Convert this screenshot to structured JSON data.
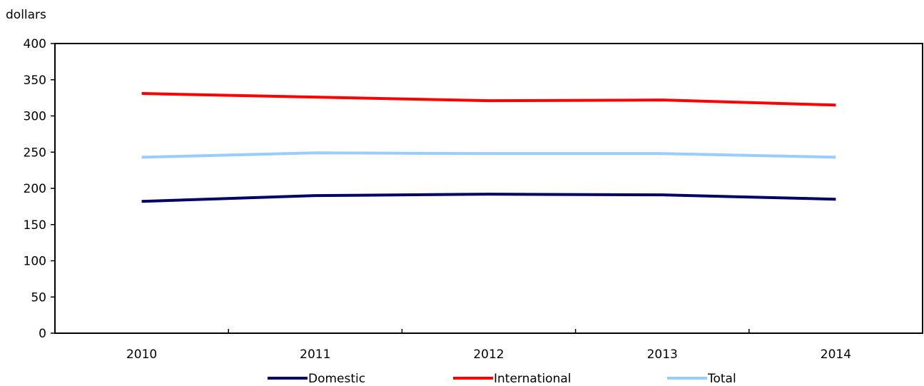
{
  "chart_data": {
    "type": "line",
    "ylabel": "dollars",
    "xlabel": "",
    "title": "",
    "categories": [
      "2010",
      "2011",
      "2012",
      "2013",
      "2014"
    ],
    "ylim": [
      0,
      400
    ],
    "yticks": [
      0,
      50,
      100,
      150,
      200,
      250,
      300,
      350,
      400
    ],
    "grid": false,
    "legend_position": "bottom",
    "series": [
      {
        "name": "Domestic",
        "color": "#000066",
        "values": [
          182,
          190,
          192,
          191,
          185
        ]
      },
      {
        "name": "International",
        "color": "#ff0000",
        "values": [
          331,
          326,
          321,
          322,
          315
        ]
      },
      {
        "name": "Total",
        "color": "#99ccff",
        "values": [
          243,
          249,
          248,
          248,
          243
        ]
      }
    ]
  }
}
